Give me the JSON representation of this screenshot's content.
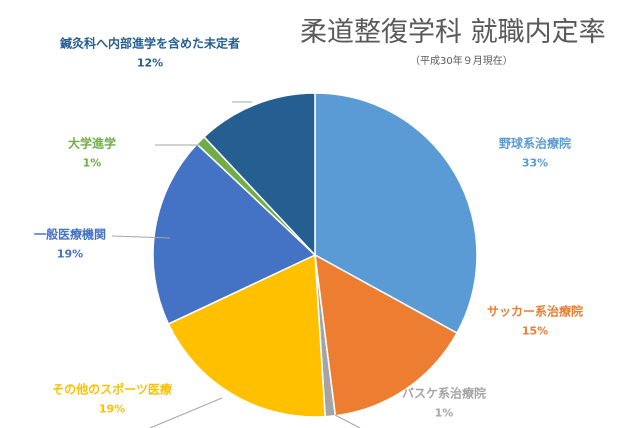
{
  "chart_data": {
    "type": "pie",
    "title": "柔道整復学科 就職内定率",
    "subtitle": "（平成30年９月現在）",
    "start_angle": "top",
    "direction": "clockwise",
    "slices": [
      {
        "label": "野球系治療院",
        "value": 33,
        "pct_label": "33%",
        "color": "#5b9bd5"
      },
      {
        "label": "サッカー系治療院",
        "value": 15,
        "pct_label": "15%",
        "color": "#ed7d31"
      },
      {
        "label": "バスケ系治療院",
        "value": 1,
        "pct_label": "1%",
        "color": "#a5a5a5"
      },
      {
        "label": "その他のスポーツ医療",
        "value": 19,
        "pct_label": "19%",
        "color": "#ffc000"
      },
      {
        "label": "一般医療機関",
        "value": 19,
        "pct_label": "19%",
        "color": "#4472c4"
      },
      {
        "label": "大学進学",
        "value": 1,
        "pct_label": "1%",
        "color": "#70ad47"
      },
      {
        "label": "鍼灸科へ内部進学を含めた未定者",
        "value": 12,
        "pct_label": "12%",
        "color": "#255e91"
      }
    ]
  }
}
